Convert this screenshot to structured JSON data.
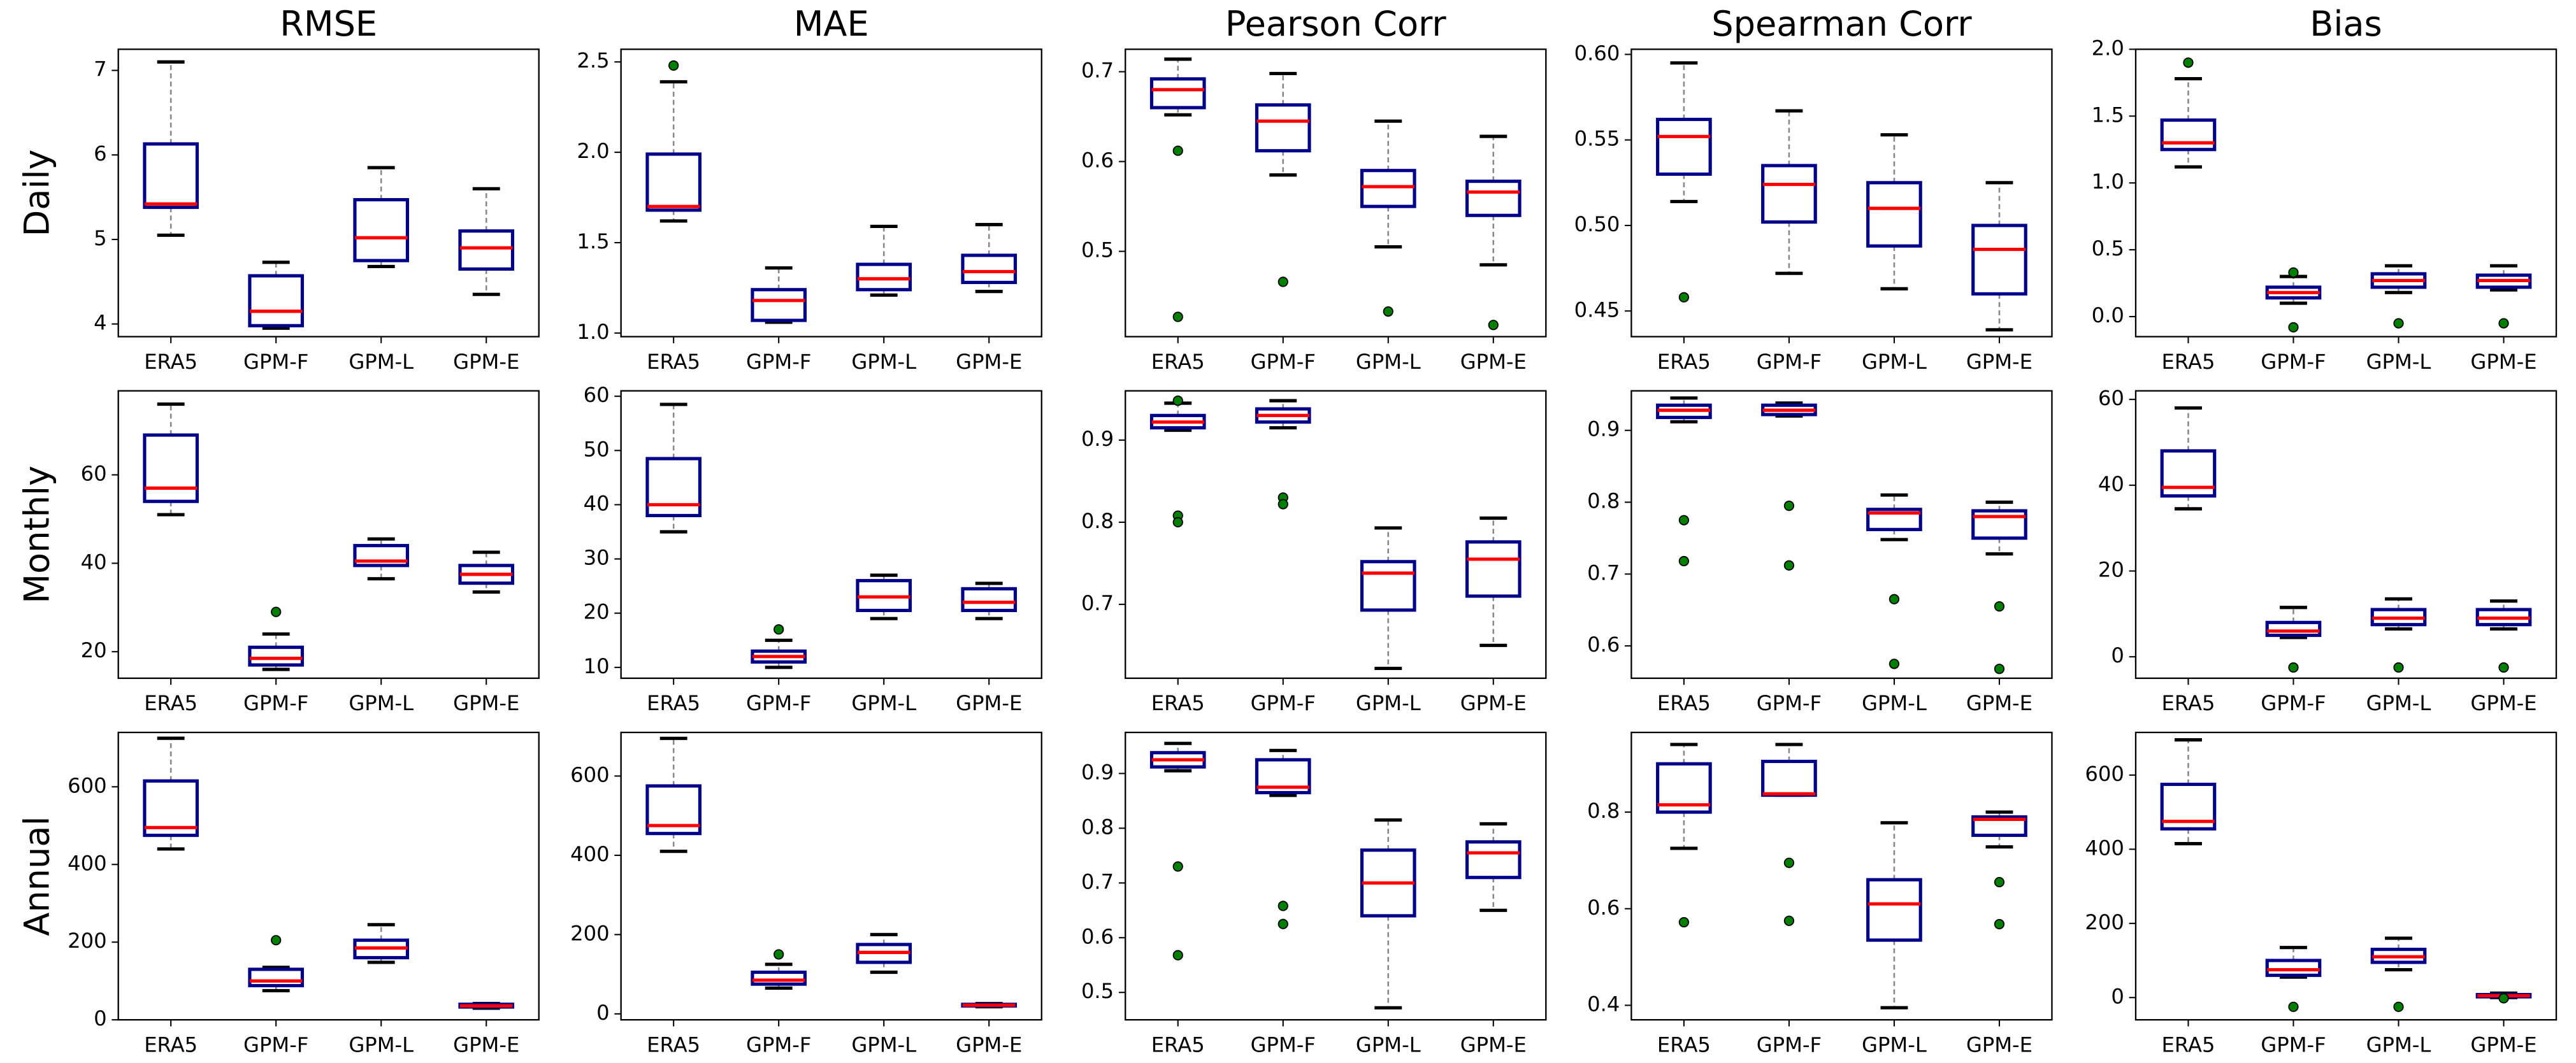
{
  "colors": {
    "box": "#00008b",
    "median": "#ff0000",
    "whisker": "#888888",
    "cap": "#000000",
    "flier": "#008000"
  },
  "chart_data": [
    {
      "type": "box",
      "title": "RMSE",
      "ylabel": "Daily",
      "categories": [
        "ERA5",
        "GPM-F",
        "GPM-L",
        "GPM-E"
      ],
      "ylim": [
        3.85,
        7.25
      ],
      "yticks": [
        4,
        5,
        6,
        7
      ],
      "boxes": [
        {
          "whislo": 5.05,
          "q1": 5.38,
          "med": 5.42,
          "q3": 6.13,
          "whishi": 7.1,
          "fliers": []
        },
        {
          "whislo": 3.95,
          "q1": 3.98,
          "med": 4.15,
          "q3": 4.57,
          "whishi": 4.73,
          "fliers": []
        },
        {
          "whislo": 4.68,
          "q1": 4.75,
          "med": 5.02,
          "q3": 5.47,
          "whishi": 5.85,
          "fliers": []
        },
        {
          "whislo": 4.35,
          "q1": 4.65,
          "med": 4.9,
          "q3": 5.1,
          "whishi": 5.6,
          "fliers": []
        }
      ]
    },
    {
      "type": "box",
      "title": "MAE",
      "categories": [
        "ERA5",
        "GPM-F",
        "GPM-L",
        "GPM-E"
      ],
      "ylim": [
        0.98,
        2.57
      ],
      "yticks": [
        {
          "value": 1,
          "label": "1.0"
        },
        1.5,
        {
          "value": 2,
          "label": "2.0"
        },
        2.5
      ],
      "boxes": [
        {
          "whislo": 1.62,
          "q1": 1.68,
          "med": 1.7,
          "q3": 1.99,
          "whishi": 2.39,
          "fliers": [
            2.48
          ]
        },
        {
          "whislo": 1.06,
          "q1": 1.07,
          "med": 1.18,
          "q3": 1.24,
          "whishi": 1.36,
          "fliers": []
        },
        {
          "whislo": 1.21,
          "q1": 1.24,
          "med": 1.3,
          "q3": 1.38,
          "whishi": 1.59,
          "fliers": []
        },
        {
          "whislo": 1.23,
          "q1": 1.28,
          "med": 1.34,
          "q3": 1.43,
          "whishi": 1.6,
          "fliers": []
        }
      ]
    },
    {
      "type": "box",
      "title": "Pearson Corr",
      "categories": [
        "ERA5",
        "GPM-F",
        "GPM-L",
        "GPM-E"
      ],
      "ylim": [
        0.405,
        0.725
      ],
      "yticks": [
        0.5,
        0.6,
        0.7
      ],
      "boxes": [
        {
          "whislo": 0.652,
          "q1": 0.66,
          "med": 0.68,
          "q3": 0.692,
          "whishi": 0.714,
          "fliers": [
            0.612,
            0.427
          ]
        },
        {
          "whislo": 0.585,
          "q1": 0.612,
          "med": 0.645,
          "q3": 0.663,
          "whishi": 0.698,
          "fliers": [
            0.466
          ]
        },
        {
          "whislo": 0.505,
          "q1": 0.55,
          "med": 0.572,
          "q3": 0.59,
          "whishi": 0.645,
          "fliers": [
            0.433
          ]
        },
        {
          "whislo": 0.485,
          "q1": 0.54,
          "med": 0.566,
          "q3": 0.578,
          "whishi": 0.628,
          "fliers": [
            0.418
          ]
        }
      ]
    },
    {
      "type": "box",
      "title": "Spearman Corr",
      "categories": [
        "ERA5",
        "GPM-F",
        "GPM-L",
        "GPM-E"
      ],
      "ylim": [
        0.435,
        0.603
      ],
      "yticks": [
        0.45,
        {
          "value": 0.5,
          "label": "0.50"
        },
        0.55,
        {
          "value": 0.6,
          "label": "0.60"
        }
      ],
      "boxes": [
        {
          "whislo": 0.514,
          "q1": 0.53,
          "med": 0.552,
          "q3": 0.562,
          "whishi": 0.595,
          "fliers": [
            0.458
          ]
        },
        {
          "whislo": 0.472,
          "q1": 0.502,
          "med": 0.524,
          "q3": 0.535,
          "whishi": 0.567,
          "fliers": []
        },
        {
          "whislo": 0.463,
          "q1": 0.488,
          "med": 0.51,
          "q3": 0.525,
          "whishi": 0.553,
          "fliers": []
        },
        {
          "whislo": 0.439,
          "q1": 0.46,
          "med": 0.486,
          "q3": 0.5,
          "whishi": 0.525,
          "fliers": []
        }
      ]
    },
    {
      "type": "box",
      "title": "Bias",
      "categories": [
        "ERA5",
        "GPM-F",
        "GPM-L",
        "GPM-E"
      ],
      "ylim": [
        -0.15,
        2.0
      ],
      "yticks": [
        {
          "value": 0,
          "label": "0.0"
        },
        0.5,
        {
          "value": 1,
          "label": "1.0"
        },
        1.5,
        {
          "value": 2,
          "label": "2.0"
        }
      ],
      "boxes": [
        {
          "whislo": 1.12,
          "q1": 1.25,
          "med": 1.3,
          "q3": 1.47,
          "whishi": 1.78,
          "fliers": [
            1.9
          ]
        },
        {
          "whislo": 0.1,
          "q1": 0.14,
          "med": 0.18,
          "q3": 0.22,
          "whishi": 0.3,
          "fliers": [
            0.33,
            -0.08
          ]
        },
        {
          "whislo": 0.18,
          "q1": 0.22,
          "med": 0.27,
          "q3": 0.32,
          "whishi": 0.38,
          "fliers": [
            -0.05
          ]
        },
        {
          "whislo": 0.2,
          "q1": 0.22,
          "med": 0.27,
          "q3": 0.31,
          "whishi": 0.38,
          "fliers": [
            -0.05
          ]
        }
      ]
    },
    {
      "type": "box",
      "ylabel": "Monthly",
      "categories": [
        "ERA5",
        "GPM-F",
        "GPM-L",
        "GPM-E"
      ],
      "ylim": [
        14,
        79
      ],
      "yticks": [
        20,
        40,
        60
      ],
      "boxes": [
        {
          "whislo": 51,
          "q1": 54,
          "med": 57,
          "q3": 69,
          "whishi": 76,
          "fliers": []
        },
        {
          "whislo": 16,
          "q1": 17,
          "med": 18.5,
          "q3": 21,
          "whishi": 24,
          "fliers": [
            29
          ]
        },
        {
          "whislo": 36.5,
          "q1": 39.5,
          "med": 40.5,
          "q3": 44,
          "whishi": 45.5,
          "fliers": []
        },
        {
          "whislo": 33.5,
          "q1": 35.5,
          "med": 37.5,
          "q3": 39.5,
          "whishi": 42.5,
          "fliers": []
        }
      ]
    },
    {
      "type": "box",
      "categories": [
        "ERA5",
        "GPM-F",
        "GPM-L",
        "GPM-E"
      ],
      "ylim": [
        8,
        61
      ],
      "yticks": [
        10,
        20,
        30,
        40,
        50,
        60
      ],
      "boxes": [
        {
          "whislo": 35,
          "q1": 38,
          "med": 40,
          "q3": 48.5,
          "whishi": 58.5,
          "fliers": []
        },
        {
          "whislo": 10,
          "q1": 11,
          "med": 12,
          "q3": 13,
          "whishi": 15,
          "fliers": [
            17
          ]
        },
        {
          "whislo": 19,
          "q1": 20.5,
          "med": 23,
          "q3": 26,
          "whishi": 27,
          "fliers": []
        },
        {
          "whislo": 19,
          "q1": 20.5,
          "med": 22,
          "q3": 24.5,
          "whishi": 25.5,
          "fliers": []
        }
      ]
    },
    {
      "type": "box",
      "categories": [
        "ERA5",
        "GPM-F",
        "GPM-L",
        "GPM-E"
      ],
      "ylim": [
        0.61,
        0.96
      ],
      "yticks": [
        0.7,
        0.8,
        0.9
      ],
      "boxes": [
        {
          "whislo": 0.912,
          "q1": 0.915,
          "med": 0.922,
          "q3": 0.93,
          "whishi": 0.945,
          "fliers": [
            0.948,
            0.808,
            0.8
          ]
        },
        {
          "whislo": 0.915,
          "q1": 0.922,
          "med": 0.93,
          "q3": 0.938,
          "whishi": 0.948,
          "fliers": [
            0.83,
            0.822
          ]
        },
        {
          "whislo": 0.622,
          "q1": 0.693,
          "med": 0.738,
          "q3": 0.752,
          "whishi": 0.793,
          "fliers": []
        },
        {
          "whislo": 0.65,
          "q1": 0.71,
          "med": 0.755,
          "q3": 0.776,
          "whishi": 0.805,
          "fliers": []
        }
      ]
    },
    {
      "type": "box",
      "categories": [
        "ERA5",
        "GPM-F",
        "GPM-L",
        "GPM-E"
      ],
      "ylim": [
        0.555,
        0.955
      ],
      "yticks": [
        0.6,
        0.7,
        0.8,
        0.9
      ],
      "boxes": [
        {
          "whislo": 0.912,
          "q1": 0.918,
          "med": 0.928,
          "q3": 0.935,
          "whishi": 0.945,
          "fliers": [
            0.775,
            0.718
          ]
        },
        {
          "whislo": 0.92,
          "q1": 0.922,
          "med": 0.928,
          "q3": 0.935,
          "whishi": 0.938,
          "fliers": [
            0.795,
            0.712
          ]
        },
        {
          "whislo": 0.748,
          "q1": 0.762,
          "med": 0.785,
          "q3": 0.79,
          "whishi": 0.81,
          "fliers": [
            0.665,
            0.575
          ]
        },
        {
          "whislo": 0.728,
          "q1": 0.75,
          "med": 0.78,
          "q3": 0.788,
          "whishi": 0.8,
          "fliers": [
            0.655,
            0.568
          ]
        }
      ]
    },
    {
      "type": "box",
      "categories": [
        "ERA5",
        "GPM-F",
        "GPM-L",
        "GPM-E"
      ],
      "ylim": [
        -5,
        62
      ],
      "yticks": [
        0,
        20,
        40,
        60
      ],
      "boxes": [
        {
          "whislo": 34.5,
          "q1": 37.5,
          "med": 39.5,
          "q3": 48,
          "whishi": 58,
          "fliers": []
        },
        {
          "whislo": 4.5,
          "q1": 5,
          "med": 6,
          "q3": 8,
          "whishi": 11.5,
          "fliers": [
            -2.5
          ]
        },
        {
          "whislo": 6.5,
          "q1": 7.5,
          "med": 9,
          "q3": 11,
          "whishi": 13.5,
          "fliers": [
            -2.5
          ]
        },
        {
          "whislo": 6.5,
          "q1": 7.5,
          "med": 9,
          "q3": 11,
          "whishi": 13,
          "fliers": [
            -2.5
          ]
        }
      ]
    },
    {
      "type": "box",
      "ylabel": "Annual",
      "categories": [
        "ERA5",
        "GPM-F",
        "GPM-L",
        "GPM-E"
      ],
      "ylim": [
        0,
        740
      ],
      "yticks": [
        0,
        200,
        400,
        600
      ],
      "boxes": [
        {
          "whislo": 440,
          "q1": 475,
          "med": 495,
          "q3": 615,
          "whishi": 725,
          "fliers": []
        },
        {
          "whislo": 75,
          "q1": 88,
          "med": 100,
          "q3": 130,
          "whishi": 135,
          "fliers": [
            205
          ]
        },
        {
          "whislo": 148,
          "q1": 160,
          "med": 185,
          "q3": 205,
          "whishi": 245,
          "fliers": []
        },
        {
          "whislo": 30,
          "q1": 33,
          "med": 36,
          "q3": 40,
          "whishi": 42,
          "fliers": []
        }
      ]
    },
    {
      "type": "box",
      "categories": [
        "ERA5",
        "GPM-F",
        "GPM-L",
        "GPM-E"
      ],
      "ylim": [
        -15,
        710
      ],
      "yticks": [
        0,
        200,
        400,
        600
      ],
      "boxes": [
        {
          "whislo": 410,
          "q1": 455,
          "med": 475,
          "q3": 575,
          "whishi": 695,
          "fliers": []
        },
        {
          "whislo": 65,
          "q1": 75,
          "med": 85,
          "q3": 105,
          "whishi": 125,
          "fliers": [
            150
          ]
        },
        {
          "whislo": 105,
          "q1": 130,
          "med": 155,
          "q3": 175,
          "whishi": 200,
          "fliers": []
        },
        {
          "whislo": 18,
          "q1": 20,
          "med": 22,
          "q3": 24,
          "whishi": 26,
          "fliers": []
        }
      ]
    },
    {
      "type": "box",
      "categories": [
        "ERA5",
        "GPM-F",
        "GPM-L",
        "GPM-E"
      ],
      "ylim": [
        0.45,
        0.975
      ],
      "yticks": [
        0.5,
        0.6,
        0.7,
        0.8,
        0.9
      ],
      "boxes": [
        {
          "whislo": 0.905,
          "q1": 0.912,
          "med": 0.925,
          "q3": 0.938,
          "whishi": 0.955,
          "fliers": [
            0.73,
            0.568
          ]
        },
        {
          "whislo": 0.86,
          "q1": 0.865,
          "med": 0.875,
          "q3": 0.925,
          "whishi": 0.942,
          "fliers": [
            0.658,
            0.625
          ]
        },
        {
          "whislo": 0.472,
          "q1": 0.64,
          "med": 0.7,
          "q3": 0.76,
          "whishi": 0.815,
          "fliers": []
        },
        {
          "whislo": 0.65,
          "q1": 0.71,
          "med": 0.755,
          "q3": 0.775,
          "whishi": 0.808,
          "fliers": []
        }
      ]
    },
    {
      "type": "box",
      "categories": [
        "ERA5",
        "GPM-F",
        "GPM-L",
        "GPM-E"
      ],
      "ylim": [
        0.37,
        0.965
      ],
      "yticks": [
        0.4,
        0.6,
        0.8
      ],
      "boxes": [
        {
          "whislo": 0.725,
          "q1": 0.8,
          "med": 0.815,
          "q3": 0.9,
          "whishi": 0.94,
          "fliers": [
            0.572
          ]
        },
        {
          "whislo": 0.835,
          "q1": 0.835,
          "med": 0.838,
          "q3": 0.905,
          "whishi": 0.94,
          "fliers": [
            0.695,
            0.575
          ]
        },
        {
          "whislo": 0.395,
          "q1": 0.535,
          "med": 0.61,
          "q3": 0.66,
          "whishi": 0.778,
          "fliers": []
        },
        {
          "whislo": 0.728,
          "q1": 0.752,
          "med": 0.785,
          "q3": 0.79,
          "whishi": 0.8,
          "fliers": [
            0.655,
            0.568
          ]
        }
      ]
    },
    {
      "type": "box",
      "categories": [
        "ERA5",
        "GPM-F",
        "GPM-L",
        "GPM-E"
      ],
      "ylim": [
        -60,
        715
      ],
      "yticks": [
        0,
        200,
        400,
        600
      ],
      "boxes": [
        {
          "whislo": 415,
          "q1": 455,
          "med": 475,
          "q3": 575,
          "whishi": 695,
          "fliers": []
        },
        {
          "whislo": 55,
          "q1": 60,
          "med": 75,
          "q3": 100,
          "whishi": 135,
          "fliers": [
            -25
          ]
        },
        {
          "whislo": 75,
          "q1": 95,
          "med": 110,
          "q3": 130,
          "whishi": 160,
          "fliers": [
            -25
          ]
        },
        {
          "whislo": 0,
          "q1": 2,
          "med": 5,
          "q3": 8,
          "whishi": 12,
          "fliers": [
            -2
          ]
        }
      ]
    }
  ]
}
